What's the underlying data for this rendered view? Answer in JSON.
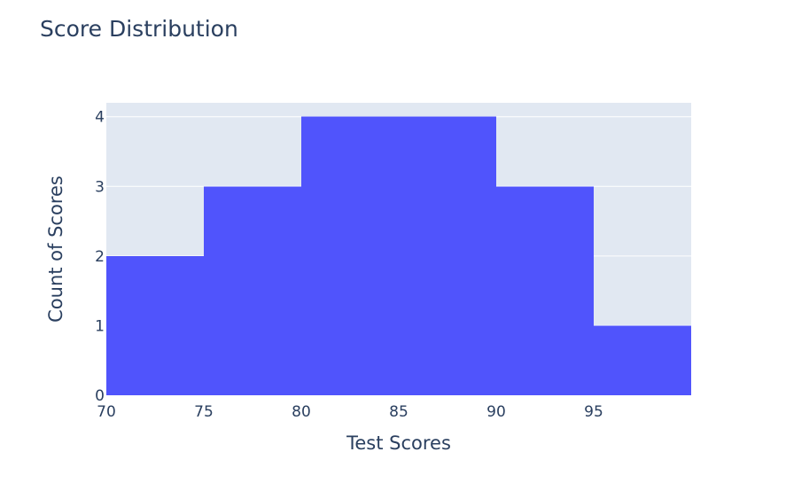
{
  "chart_data": {
    "type": "bar",
    "title": "Score Distribution",
    "xlabel": "Test Scores",
    "ylabel": "Count of Scores",
    "bins": [
      {
        "start": 70,
        "end": 75,
        "count": 2
      },
      {
        "start": 75,
        "end": 80,
        "count": 3
      },
      {
        "start": 80,
        "end": 85,
        "count": 4
      },
      {
        "start": 85,
        "end": 90,
        "count": 4
      },
      {
        "start": 90,
        "end": 95,
        "count": 3
      },
      {
        "start": 95,
        "end": 100,
        "count": 1
      }
    ],
    "xlim": [
      70,
      100
    ],
    "ylim": [
      0,
      4.2
    ],
    "x_ticks": [
      70,
      75,
      80,
      85,
      90,
      95
    ],
    "x_tick_labels": [
      "70",
      "75",
      "80",
      "85",
      "90",
      "95"
    ],
    "y_ticks": [
      0,
      1,
      2,
      3,
      4
    ],
    "y_tick_labels": [
      "0",
      "1",
      "2",
      "3",
      "4"
    ],
    "grid": true,
    "colors": {
      "bar": "#5054fc",
      "plot_background": "#e1e8f2",
      "gridline": "#ffffff",
      "text": "#2a3f5f"
    }
  }
}
